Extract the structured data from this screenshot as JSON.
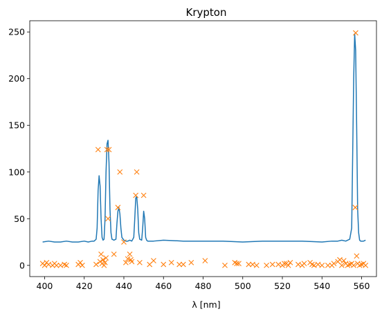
{
  "chart_data": {
    "type": "line",
    "title": "Krypton",
    "xlabel": "λ [nm]",
    "ylabel": "",
    "xlim": [
      392.5,
      567.5
    ],
    "ylim": [
      -12,
      262
    ],
    "xticks": [
      400,
      420,
      440,
      460,
      480,
      500,
      520,
      540,
      560
    ],
    "yticks": [
      0,
      50,
      100,
      150,
      200,
      250
    ],
    "grid": false,
    "legend": "none",
    "colors": {
      "line": "#1f77b4",
      "markers": "#ff7f0e"
    },
    "series": [
      {
        "kind": "line",
        "x": [
          399.0,
          402,
          405,
          408,
          411,
          414,
          417,
          420,
          422,
          424,
          425,
          426,
          426.5,
          427,
          427.5,
          428,
          428.5,
          429,
          429.5,
          430,
          430.5,
          431,
          431.5,
          432,
          432.5,
          433,
          433.5,
          434,
          435,
          436,
          436.5,
          437,
          437.5,
          438,
          438.5,
          439,
          440,
          441,
          442,
          443,
          444,
          445,
          445.5,
          446,
          446.5,
          447,
          447.5,
          448,
          449,
          449.5,
          450,
          450.5,
          451,
          451.5,
          452,
          453,
          455,
          460,
          470,
          480,
          490,
          500,
          510,
          520,
          530,
          540,
          545,
          548,
          550,
          552,
          554,
          555,
          555.5,
          556,
          556.5,
          557,
          557.5,
          558,
          558.5,
          559,
          559.5,
          560,
          561,
          562
        ],
        "y": [
          25,
          26,
          25,
          25,
          26,
          25,
          25,
          26,
          25,
          26,
          26,
          28,
          40,
          80,
          96,
          85,
          50,
          30,
          27,
          28,
          50,
          100,
          130,
          134,
          110,
          60,
          35,
          28,
          27,
          28,
          45,
          58,
          62,
          55,
          40,
          30,
          27,
          26,
          26,
          27,
          26,
          30,
          50,
          72,
          74,
          60,
          35,
          28,
          27,
          40,
          58,
          50,
          30,
          27,
          26,
          26,
          26,
          27,
          26,
          26,
          26,
          25,
          26,
          26,
          26,
          25,
          26,
          26,
          27,
          26,
          28,
          40,
          120,
          200,
          248,
          230,
          150,
          60,
          35,
          27,
          26,
          26,
          26,
          27
        ]
      },
      {
        "kind": "markers",
        "marker": "x",
        "points": [
          [
            399,
            2
          ],
          [
            400,
            0
          ],
          [
            401,
            3
          ],
          [
            402,
            1
          ],
          [
            404,
            0
          ],
          [
            405,
            2
          ],
          [
            406,
            0
          ],
          [
            408,
            0
          ],
          [
            410,
            1
          ],
          [
            411,
            0
          ],
          [
            417,
            1
          ],
          [
            418,
            3
          ],
          [
            419,
            0
          ],
          [
            426,
            1
          ],
          [
            427,
            124
          ],
          [
            428,
            4
          ],
          [
            428.5,
            12
          ],
          [
            429,
            2
          ],
          [
            429.5,
            6
          ],
          [
            430,
            0
          ],
          [
            430.5,
            3
          ],
          [
            431,
            8
          ],
          [
            431.5,
            124
          ],
          [
            432,
            50
          ],
          [
            432.5,
            124
          ],
          [
            435,
            12
          ],
          [
            437,
            62
          ],
          [
            438,
            100
          ],
          [
            440,
            25
          ],
          [
            441,
            3
          ],
          [
            442,
            7
          ],
          [
            443,
            12
          ],
          [
            443.5,
            6
          ],
          [
            444,
            4
          ],
          [
            446,
            75
          ],
          [
            446.5,
            100
          ],
          [
            448,
            3
          ],
          [
            450,
            75
          ],
          [
            453,
            1
          ],
          [
            455,
            5
          ],
          [
            460,
            1
          ],
          [
            464,
            3
          ],
          [
            468,
            1
          ],
          [
            470,
            1
          ],
          [
            474,
            3
          ],
          [
            481,
            5
          ],
          [
            491,
            0
          ],
          [
            496,
            3
          ],
          [
            497,
            2
          ],
          [
            498,
            2
          ],
          [
            503,
            1
          ],
          [
            505,
            1
          ],
          [
            507,
            0
          ],
          [
            512,
            0
          ],
          [
            515,
            1
          ],
          [
            518,
            1
          ],
          [
            520,
            0
          ],
          [
            521,
            2
          ],
          [
            522,
            2
          ],
          [
            523,
            0
          ],
          [
            524,
            3
          ],
          [
            528,
            1
          ],
          [
            530,
            0
          ],
          [
            531,
            2
          ],
          [
            534,
            3
          ],
          [
            535,
            1
          ],
          [
            536,
            0
          ],
          [
            538,
            1
          ],
          [
            540,
            0
          ],
          [
            543,
            0
          ],
          [
            545,
            0
          ],
          [
            546,
            2
          ],
          [
            548,
            4
          ],
          [
            549,
            6
          ],
          [
            550,
            0
          ],
          [
            551,
            5
          ],
          [
            552,
            2
          ],
          [
            553,
            0
          ],
          [
            554,
            1
          ],
          [
            555,
            2
          ],
          [
            556,
            0
          ],
          [
            556.8,
            62
          ],
          [
            557,
            249
          ],
          [
            557.5,
            10
          ],
          [
            558,
            2
          ],
          [
            559,
            0
          ],
          [
            560,
            1
          ],
          [
            561,
            2
          ],
          [
            562,
            0
          ]
        ]
      }
    ]
  }
}
